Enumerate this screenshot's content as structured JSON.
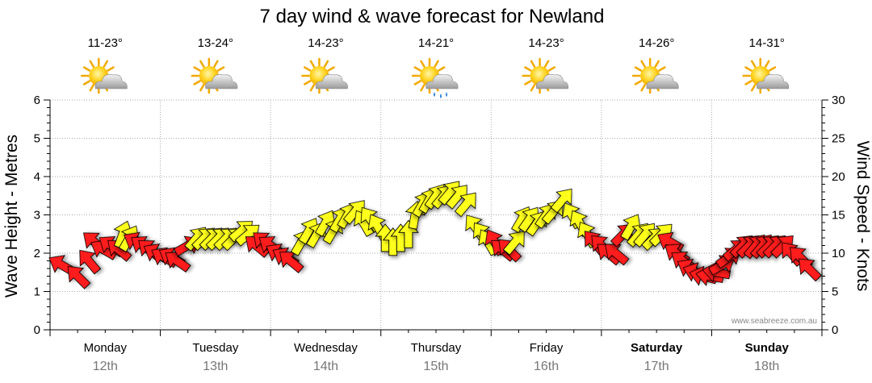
{
  "chart_data": {
    "type": "scatter",
    "title": "7 day wind & wave forecast for Newland",
    "ylabel_left": "Wave Height - Metres",
    "ylabel_right": "Wind Speed - Knots",
    "ylim_left": [
      0,
      6
    ],
    "ylim_right": [
      0,
      30
    ],
    "yticks_left": [
      "0",
      "1",
      "2",
      "3",
      "4",
      "5",
      "6"
    ],
    "yticks_right": [
      "0",
      "5",
      "10",
      "15",
      "20",
      "25",
      "30"
    ],
    "credit": "www.seabreeze.com.au",
    "colors": {
      "strong": "#ff1a1a",
      "moderate": "#ffff1a",
      "grid": "#aaaaaa"
    },
    "days": [
      {
        "name": "Monday",
        "date": "12th",
        "temp": "11-23°",
        "icon": "sun-cloud-icon",
        "bold": false
      },
      {
        "name": "Tuesday",
        "date": "13th",
        "temp": "13-24°",
        "icon": "sun-cloud-icon",
        "bold": false
      },
      {
        "name": "Wednesday",
        "date": "14th",
        "temp": "14-23°",
        "icon": "sun-cloud-icon",
        "bold": false
      },
      {
        "name": "Thursday",
        "date": "15th",
        "temp": "14-21°",
        "icon": "sun-cloud-rain-icon",
        "bold": false
      },
      {
        "name": "Friday",
        "date": "16th",
        "temp": "14-23°",
        "icon": "sun-cloud-icon",
        "bold": false
      },
      {
        "name": "Saturday",
        "date": "17th",
        "temp": "14-26°",
        "icon": "sun-cloud-icon",
        "bold": true
      },
      {
        "name": "Sunday",
        "date": "18th",
        "temp": "14-31°",
        "icon": "sun-cloud-icon",
        "bold": true
      }
    ],
    "wind": [
      {
        "t": 0.1,
        "kn": 8.5,
        "dir": 300,
        "c": "red"
      },
      {
        "t": 0.25,
        "kn": 7.0,
        "dir": 315,
        "c": "red"
      },
      {
        "t": 0.35,
        "kn": 9.0,
        "dir": 320,
        "c": "red"
      },
      {
        "t": 0.4,
        "kn": 11.5,
        "dir": 310,
        "c": "red"
      },
      {
        "t": 0.48,
        "kn": 10.5,
        "dir": 300,
        "c": "red"
      },
      {
        "t": 0.55,
        "kn": 11.0,
        "dir": 305,
        "c": "red"
      },
      {
        "t": 0.62,
        "kn": 10.5,
        "dir": 310,
        "c": "red"
      },
      {
        "t": 0.66,
        "kn": 12.5,
        "dir": 20,
        "c": "yellow"
      },
      {
        "t": 0.72,
        "kn": 12.0,
        "dir": 30,
        "c": "yellow"
      },
      {
        "t": 0.78,
        "kn": 11.5,
        "dir": 300,
        "c": "red"
      },
      {
        "t": 0.84,
        "kn": 11.0,
        "dir": 305,
        "c": "red"
      },
      {
        "t": 0.9,
        "kn": 10.5,
        "dir": 310,
        "c": "red"
      },
      {
        "t": 0.96,
        "kn": 10.0,
        "dir": 300,
        "c": "red"
      },
      {
        "t": 1.03,
        "kn": 9.5,
        "dir": 300,
        "c": "red"
      },
      {
        "t": 1.1,
        "kn": 9.5,
        "dir": 300,
        "c": "red"
      },
      {
        "t": 1.15,
        "kn": 9.0,
        "dir": 305,
        "c": "red"
      },
      {
        "t": 1.25,
        "kn": 11.0,
        "dir": 60,
        "c": "red"
      },
      {
        "t": 1.33,
        "kn": 12.0,
        "dir": 40,
        "c": "yellow"
      },
      {
        "t": 1.4,
        "kn": 12.0,
        "dir": 45,
        "c": "yellow"
      },
      {
        "t": 1.47,
        "kn": 12.0,
        "dir": 45,
        "c": "yellow"
      },
      {
        "t": 1.53,
        "kn": 12.0,
        "dir": 45,
        "c": "yellow"
      },
      {
        "t": 1.6,
        "kn": 12.0,
        "dir": 45,
        "c": "yellow"
      },
      {
        "t": 1.67,
        "kn": 12.0,
        "dir": 45,
        "c": "yellow"
      },
      {
        "t": 1.74,
        "kn": 13.0,
        "dir": 50,
        "c": "yellow"
      },
      {
        "t": 1.8,
        "kn": 12.5,
        "dir": 50,
        "c": "yellow"
      },
      {
        "t": 1.87,
        "kn": 11.0,
        "dir": 310,
        "c": "red"
      },
      {
        "t": 1.94,
        "kn": 11.5,
        "dir": 310,
        "c": "red"
      },
      {
        "t": 2.0,
        "kn": 11.0,
        "dir": 305,
        "c": "red"
      },
      {
        "t": 2.07,
        "kn": 10.0,
        "dir": 300,
        "c": "red"
      },
      {
        "t": 2.13,
        "kn": 9.5,
        "dir": 300,
        "c": "red"
      },
      {
        "t": 2.18,
        "kn": 9.0,
        "dir": 310,
        "c": "red"
      },
      {
        "t": 2.28,
        "kn": 11.5,
        "dir": 30,
        "c": "yellow"
      },
      {
        "t": 2.35,
        "kn": 13.0,
        "dir": 30,
        "c": "yellow"
      },
      {
        "t": 2.42,
        "kn": 12.5,
        "dir": 30,
        "c": "yellow"
      },
      {
        "t": 2.5,
        "kn": 14.0,
        "dir": 30,
        "c": "yellow"
      },
      {
        "t": 2.57,
        "kn": 13.0,
        "dir": 30,
        "c": "yellow"
      },
      {
        "t": 2.63,
        "kn": 14.5,
        "dir": 30,
        "c": "yellow"
      },
      {
        "t": 2.7,
        "kn": 15.0,
        "dir": 30,
        "c": "yellow"
      },
      {
        "t": 2.77,
        "kn": 15.5,
        "dir": 40,
        "c": "yellow"
      },
      {
        "t": 2.84,
        "kn": 14.0,
        "dir": 330,
        "c": "yellow"
      },
      {
        "t": 2.9,
        "kn": 14.5,
        "dir": 325,
        "c": "yellow"
      },
      {
        "t": 2.97,
        "kn": 13.5,
        "dir": 330,
        "c": "yellow"
      },
      {
        "t": 3.04,
        "kn": 12.0,
        "dir": 0,
        "c": "yellow"
      },
      {
        "t": 3.11,
        "kn": 11.5,
        "dir": 0,
        "c": "yellow"
      },
      {
        "t": 3.18,
        "kn": 12.0,
        "dir": 0,
        "c": "yellow"
      },
      {
        "t": 3.25,
        "kn": 12.5,
        "dir": 0,
        "c": "yellow"
      },
      {
        "t": 3.31,
        "kn": 15.0,
        "dir": 10,
        "c": "yellow"
      },
      {
        "t": 3.38,
        "kn": 16.5,
        "dir": 30,
        "c": "yellow"
      },
      {
        "t": 3.44,
        "kn": 17.0,
        "dir": 30,
        "c": "yellow"
      },
      {
        "t": 3.5,
        "kn": 17.5,
        "dir": 35,
        "c": "yellow"
      },
      {
        "t": 3.57,
        "kn": 17.5,
        "dir": 40,
        "c": "yellow"
      },
      {
        "t": 3.63,
        "kn": 18.0,
        "dir": 40,
        "c": "yellow"
      },
      {
        "t": 3.7,
        "kn": 17.5,
        "dir": 40,
        "c": "yellow"
      },
      {
        "t": 3.78,
        "kn": 16.5,
        "dir": 40,
        "c": "yellow"
      },
      {
        "t": 3.85,
        "kn": 13.5,
        "dir": 325,
        "c": "yellow"
      },
      {
        "t": 3.92,
        "kn": 12.5,
        "dir": 325,
        "c": "yellow"
      },
      {
        "t": 3.97,
        "kn": 11.5,
        "dir": 330,
        "c": "yellow"
      },
      {
        "t": 4.03,
        "kn": 11.5,
        "dir": 330,
        "c": "red"
      },
      {
        "t": 4.1,
        "kn": 10.5,
        "dir": 310,
        "c": "red"
      },
      {
        "t": 4.16,
        "kn": 10.5,
        "dir": 315,
        "c": "red"
      },
      {
        "t": 4.22,
        "kn": 11.5,
        "dir": 40,
        "c": "yellow"
      },
      {
        "t": 4.28,
        "kn": 14.5,
        "dir": 30,
        "c": "yellow"
      },
      {
        "t": 4.35,
        "kn": 14.5,
        "dir": 35,
        "c": "yellow"
      },
      {
        "t": 4.42,
        "kn": 14.0,
        "dir": 35,
        "c": "yellow"
      },
      {
        "t": 4.5,
        "kn": 15.0,
        "dir": 35,
        "c": "yellow"
      },
      {
        "t": 4.57,
        "kn": 15.5,
        "dir": 40,
        "c": "yellow"
      },
      {
        "t": 4.65,
        "kn": 17.0,
        "dir": 40,
        "c": "yellow"
      },
      {
        "t": 4.73,
        "kn": 15.0,
        "dir": 330,
        "c": "yellow"
      },
      {
        "t": 4.8,
        "kn": 14.0,
        "dir": 330,
        "c": "yellow"
      },
      {
        "t": 4.87,
        "kn": 12.5,
        "dir": 330,
        "c": "yellow"
      },
      {
        "t": 4.93,
        "kn": 11.5,
        "dir": 320,
        "c": "red"
      },
      {
        "t": 5.0,
        "kn": 11.0,
        "dir": 315,
        "c": "red"
      },
      {
        "t": 5.06,
        "kn": 10.0,
        "dir": 310,
        "c": "red"
      },
      {
        "t": 5.13,
        "kn": 10.0,
        "dir": 310,
        "c": "red"
      },
      {
        "t": 5.2,
        "kn": 12.5,
        "dir": 45,
        "c": "red"
      },
      {
        "t": 5.27,
        "kn": 13.5,
        "dir": 30,
        "c": "yellow"
      },
      {
        "t": 5.34,
        "kn": 12.5,
        "dir": 40,
        "c": "yellow"
      },
      {
        "t": 5.4,
        "kn": 12.5,
        "dir": 40,
        "c": "yellow"
      },
      {
        "t": 5.48,
        "kn": 12.0,
        "dir": 45,
        "c": "yellow"
      },
      {
        "t": 5.55,
        "kn": 12.5,
        "dir": 45,
        "c": "yellow"
      },
      {
        "t": 5.62,
        "kn": 11.5,
        "dir": 300,
        "c": "red"
      },
      {
        "t": 5.68,
        "kn": 10.0,
        "dir": 305,
        "c": "red"
      },
      {
        "t": 5.74,
        "kn": 9.0,
        "dir": 305,
        "c": "red"
      },
      {
        "t": 5.8,
        "kn": 8.0,
        "dir": 300,
        "c": "red"
      },
      {
        "t": 5.86,
        "kn": 7.5,
        "dir": 290,
        "c": "red"
      },
      {
        "t": 5.92,
        "kn": 7.0,
        "dir": 285,
        "c": "red"
      },
      {
        "t": 5.98,
        "kn": 7.0,
        "dir": 280,
        "c": "red"
      },
      {
        "t": 6.04,
        "kn": 7.5,
        "dir": 280,
        "c": "red"
      },
      {
        "t": 6.1,
        "kn": 8.5,
        "dir": 60,
        "c": "red"
      },
      {
        "t": 6.16,
        "kn": 9.5,
        "dir": 55,
        "c": "red"
      },
      {
        "t": 6.22,
        "kn": 10.5,
        "dir": 50,
        "c": "red"
      },
      {
        "t": 6.28,
        "kn": 11.0,
        "dir": 45,
        "c": "red"
      },
      {
        "t": 6.34,
        "kn": 11.0,
        "dir": 45,
        "c": "red"
      },
      {
        "t": 6.4,
        "kn": 11.0,
        "dir": 40,
        "c": "red"
      },
      {
        "t": 6.46,
        "kn": 11.0,
        "dir": 40,
        "c": "red"
      },
      {
        "t": 6.52,
        "kn": 11.0,
        "dir": 45,
        "c": "red"
      },
      {
        "t": 6.58,
        "kn": 11.0,
        "dir": 45,
        "c": "red"
      },
      {
        "t": 6.65,
        "kn": 11.0,
        "dir": 45,
        "c": "red"
      },
      {
        "t": 6.72,
        "kn": 10.0,
        "dir": 320,
        "c": "red"
      },
      {
        "t": 6.8,
        "kn": 9.5,
        "dir": 315,
        "c": "red"
      },
      {
        "t": 6.88,
        "kn": 8.0,
        "dir": 315,
        "c": "red"
      }
    ]
  }
}
